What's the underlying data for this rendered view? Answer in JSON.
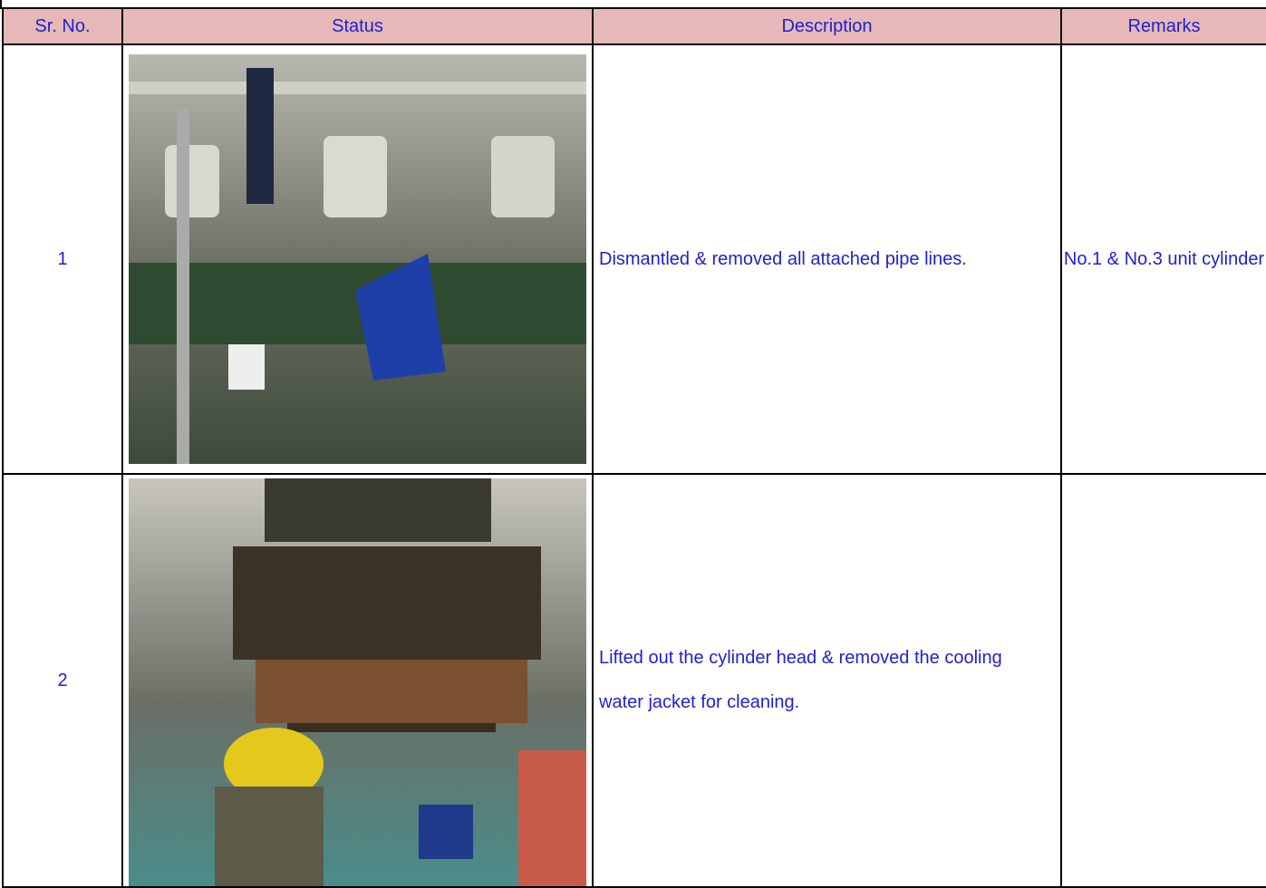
{
  "table": {
    "header": [
      "Sr. No.",
      "Status",
      "Description",
      "Remarks"
    ],
    "rows": [
      {
        "sr": "1",
        "description": "Dismantled & removed all attached pipe lines.",
        "remarks": "No.1 & No.3 unit cylinder"
      },
      {
        "sr": "2",
        "description": "Lifted out the cylinder head & removed the cooling water jacket for cleaning."
      }
    ]
  }
}
